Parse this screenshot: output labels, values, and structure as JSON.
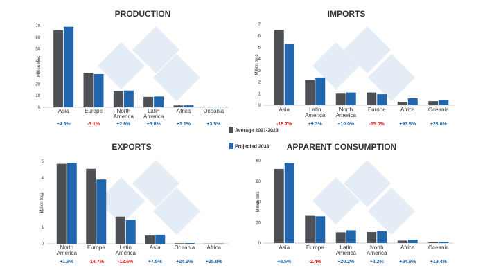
{
  "colors": {
    "average": "#4d5055",
    "projected": "#2166ac",
    "positive": "#2166ac",
    "negative": "#e41a1c",
    "watermark": "#dfe9f3"
  },
  "legend": {
    "average": "Average 2021-2023",
    "projected": "Projected 2033"
  },
  "chart_data": [
    {
      "type": "bar",
      "title": "PRODUCTION",
      "ylabel": "Million tons",
      "ylim": [
        0,
        70
      ],
      "yticks": [
        0,
        10,
        20,
        30,
        40,
        50,
        60,
        70
      ],
      "categories": [
        "Asia",
        "Europe",
        "North America",
        "Latin America",
        "Africa",
        "Oceania"
      ],
      "series": [
        {
          "name": "Average 2021-2023",
          "values": [
            66,
            29.5,
            14,
            9,
            1.6,
            0.5
          ]
        },
        {
          "name": "Projected 2033",
          "values": [
            69,
            28.5,
            14.4,
            9.3,
            1.7,
            0.5
          ]
        }
      ],
      "changes": [
        "+4.6%",
        "-3.1%",
        "+2.6%",
        "+3.8%",
        "+3.1%",
        "+3.5%"
      ]
    },
    {
      "type": "bar",
      "title": "IMPORTS",
      "ylabel": "Million tons",
      "ylim": [
        0,
        7
      ],
      "yticks": [
        0,
        1,
        2,
        3,
        4,
        5,
        6,
        7
      ],
      "categories": [
        "Asia",
        "Latin America",
        "North America",
        "Europe",
        "Africa",
        "Oceania"
      ],
      "series": [
        {
          "name": "Average 2021-2023",
          "values": [
            6.5,
            2.2,
            1.0,
            1.1,
            0.3,
            0.35
          ]
        },
        {
          "name": "Projected 2033",
          "values": [
            5.3,
            2.4,
            1.1,
            0.95,
            0.6,
            0.45
          ]
        }
      ],
      "changes": [
        "-18.7%",
        "+9.3%",
        "+10.0%",
        "-15.0%",
        "+93.8%",
        "+28.6%"
      ]
    },
    {
      "type": "bar",
      "title": "EXPORTS",
      "ylabel": "Million tons",
      "ylim": [
        0,
        5
      ],
      "yticks": [
        0,
        1,
        2,
        3,
        4,
        5
      ],
      "categories": [
        "North America",
        "Europe",
        "Latin America",
        "Asia",
        "Oceania",
        "Africa"
      ],
      "series": [
        {
          "name": "Average 2021-2023",
          "values": [
            4.85,
            4.55,
            1.65,
            0.5,
            0.03,
            0.01
          ]
        },
        {
          "name": "Projected 2033",
          "values": [
            4.9,
            3.9,
            1.45,
            0.55,
            0.04,
            0.02
          ]
        }
      ],
      "changes": [
        "+1.6%",
        "-14.7%",
        "-12.6%",
        "+7.5%",
        "+24.2%",
        "+25.8%"
      ]
    },
    {
      "type": "bar",
      "title": "APPARENT CONSUMPTION",
      "ylabel": "Million tons",
      "ylim": [
        0,
        80
      ],
      "yticks": [
        0,
        20,
        40,
        60,
        80
      ],
      "categories": [
        "Asia",
        "Europe",
        "Latin America",
        "North America",
        "Africa",
        "Oceania"
      ],
      "series": [
        {
          "name": "Average 2021-2023",
          "values": [
            72,
            26.5,
            10.5,
            10.7,
            2.4,
            0.9
          ]
        },
        {
          "name": "Projected 2033",
          "values": [
            78,
            26,
            12.5,
            11.7,
            3.2,
            1.1
          ]
        }
      ],
      "changes": [
        "+8.5%",
        "-2.4%",
        "+20.2%",
        "+8.2%",
        "+34.9%",
        "+19.4%"
      ]
    }
  ]
}
